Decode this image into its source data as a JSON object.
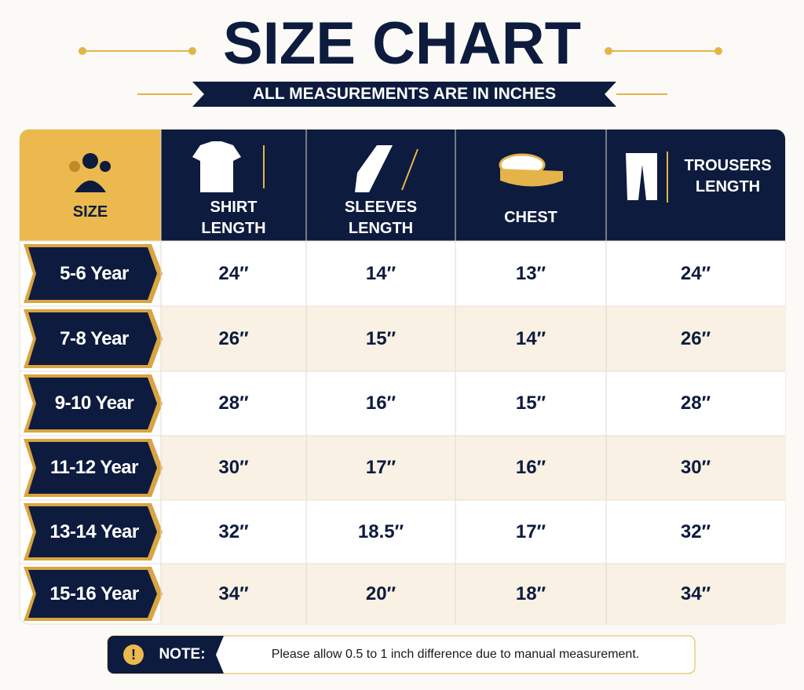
{
  "header": {
    "title": "SIZE CHART",
    "subtitle": "ALL MEASUREMENTS ARE IN INCHES"
  },
  "table": {
    "columns": [
      "SIZE",
      "SHIRT LENGTH",
      "SLEEVES LENGTH",
      "CHEST",
      "TROUSERS LENGTH"
    ],
    "rows": [
      [
        "5-6 Year",
        "24″",
        "14″",
        "13″",
        "24″"
      ],
      [
        "7-8 Year",
        "26″",
        "15″",
        "14″",
        "26″"
      ],
      [
        "9-10 Year",
        "28″",
        "16″",
        "15″",
        "28″"
      ],
      [
        "11-12 Year",
        "30″",
        "17″",
        "16″",
        "30″"
      ],
      [
        "13-14 Year",
        "32″",
        "18.5″",
        "17″",
        "32″"
      ],
      [
        "15-16 Year",
        "34″",
        "20″",
        "18″",
        "34″"
      ]
    ]
  },
  "note": {
    "label": "NOTE:",
    "text": "Please allow 0.5 to 1 inch difference due to manual measurement."
  }
}
